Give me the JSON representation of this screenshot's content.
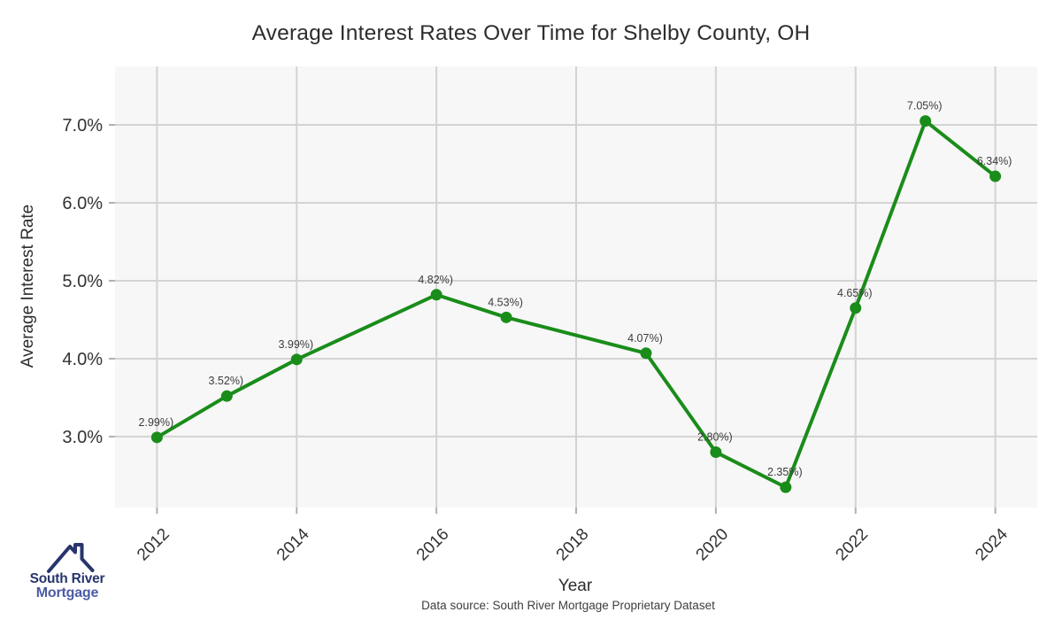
{
  "chart_data": {
    "type": "line",
    "title": "Average Interest Rates Over Time for Shelby County, OH",
    "xlabel": "Year",
    "ylabel": "Average Interest Rate",
    "caption": "Data source: South River Mortgage Proprietary Dataset",
    "x": [
      2012,
      2013,
      2014,
      2016,
      2017,
      2019,
      2020,
      2021,
      2022,
      2023,
      2024
    ],
    "y": [
      2.99,
      3.52,
      3.99,
      4.82,
      4.53,
      4.07,
      2.8,
      2.35,
      4.65,
      7.05,
      6.34
    ],
    "point_labels": [
      "2.99%)",
      "3.52%)",
      "3.99%)",
      "4.82%)",
      "4.53%)",
      "4.07%)",
      "2.80%)",
      "2.35%)",
      "4.65%)",
      "7.05%)",
      "6.34%)"
    ],
    "x_tick_values": [
      2012,
      2014,
      2016,
      2018,
      2020,
      2022,
      2024
    ],
    "x_tick_labels": [
      "2012",
      "2014",
      "2016",
      "2018",
      "2020",
      "2022",
      "2024"
    ],
    "y_tick_values": [
      3,
      4,
      5,
      6,
      7
    ],
    "y_tick_labels": [
      "3.0%",
      "4.0%",
      "5.0%",
      "6.0%",
      "7.0%"
    ],
    "xlim": [
      2011.4,
      2024.6
    ],
    "ylim": [
      2.09,
      7.75
    ],
    "grid": true,
    "legend": "none",
    "line_color": "#1a8c1a",
    "marker_color": "#1a8c1a",
    "plot_bg_color": "#f7f7f7",
    "grid_color": "#d3d3d3",
    "tick_color": "#b0b0b0",
    "tick_label_color": "#333333",
    "point_label_color": "#3c3c3c"
  },
  "logo": {
    "line1": "South River",
    "line2": "Mortgage",
    "color_line1": "#27356d",
    "color_line2": "#4c5ba6",
    "roof_icon_color": "#27356d"
  }
}
